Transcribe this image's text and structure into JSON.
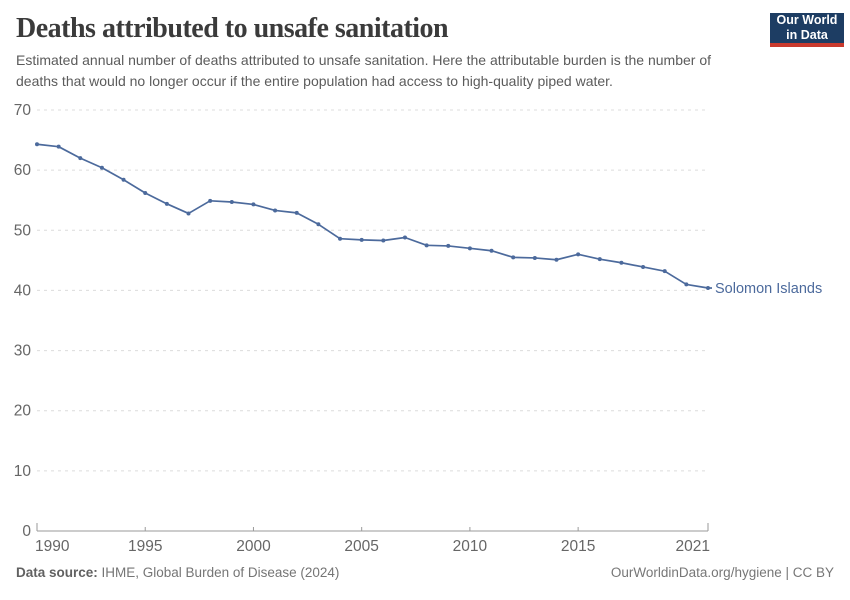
{
  "header": {
    "title": "Deaths attributed to unsafe sanitation",
    "subtitle": "Estimated annual number of deaths attributed to unsafe sanitation. Here the attributable burden is the number of deaths that would no longer occur if the entire population had access to high-quality piped water.",
    "logo": {
      "line1": "Our World",
      "line2": "in Data"
    }
  },
  "chart_data": {
    "type": "line",
    "title": "Deaths attributed to unsafe sanitation",
    "entity_label": "Solomon Islands",
    "x": [
      1990,
      1991,
      1992,
      1993,
      1994,
      1995,
      1996,
      1997,
      1998,
      1999,
      2000,
      2001,
      2002,
      2003,
      2004,
      2005,
      2006,
      2007,
      2008,
      2009,
      2010,
      2011,
      2012,
      2013,
      2014,
      2015,
      2016,
      2017,
      2018,
      2019,
      2020,
      2021
    ],
    "series": [
      {
        "name": "Solomon Islands",
        "color": "#4c6a9c",
        "values": [
          64.3,
          63.9,
          62.0,
          60.4,
          58.4,
          56.2,
          54.4,
          52.8,
          54.9,
          54.7,
          54.3,
          53.3,
          52.9,
          51.0,
          48.6,
          48.4,
          48.3,
          48.8,
          47.5,
          47.4,
          47.0,
          46.6,
          45.5,
          45.4,
          45.1,
          46.0,
          45.2,
          44.6,
          43.9,
          43.2,
          41.0,
          40.4
        ]
      }
    ],
    "xlabel": "",
    "ylabel": "",
    "xlim": [
      1990,
      2021
    ],
    "ylim": [
      0,
      70
    ],
    "x_ticks": [
      1990,
      1995,
      2000,
      2005,
      2010,
      2015,
      2021
    ],
    "y_ticks": [
      0,
      10,
      20,
      30,
      40,
      50,
      60,
      70
    ],
    "grid": "horizontal dashed gridlines",
    "legend_position": "end-of-line label"
  },
  "footer": {
    "source_bold": "Data source:",
    "source_rest": " IHME, Global Burden of Disease (2024)",
    "credit": "OurWorldinData.org/hygiene | CC BY"
  },
  "colors": {
    "series": "#4c6a9c",
    "grid": "#dcdcdc",
    "axis": "#9a9a9a",
    "tick_text": "#666666",
    "title_text": "#3b3b3b",
    "subtitle_text": "#5b5b5b",
    "footer_text": "#757575",
    "logo_bg": "#1d3d63",
    "logo_red": "#c93a2d"
  }
}
